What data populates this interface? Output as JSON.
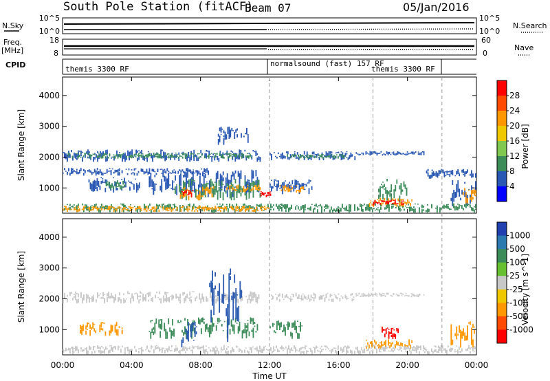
{
  "header": {
    "station": "South Pole Station (fitACF)",
    "beam": "Beam 07",
    "date": "05/Jan/2016"
  },
  "top_panels": {
    "nsky_label": "N.Sky",
    "nsky_ticks": [
      "10^5",
      "10^0"
    ],
    "nsearch_label": "N.Search",
    "nsearch_ticks": [
      "10^5",
      "10^0"
    ],
    "freq_label": "Freq.",
    "freq_unit": "[MHz]",
    "freq_ticks": [
      "18",
      "8"
    ],
    "nave_label": "Nave",
    "nave_ticks": [
      "60",
      "0"
    ],
    "cpid_label": "CPID",
    "cpid_segments": [
      {
        "label": "themis 3300 RF",
        "start_hour": 0,
        "end_hour": 12
      },
      {
        "label": "normalsound (fast) 157 RF",
        "start_hour": 12,
        "end_hour": 18
      },
      {
        "label": "themis 3300 RF",
        "start_hour": 18,
        "end_hour": 22
      }
    ]
  },
  "chart_data": [
    {
      "type": "heatmap",
      "name": "power",
      "ylabel": "Slant Range [km]",
      "yticks": [
        1000,
        2000,
        3000,
        4000
      ],
      "ylim": [
        180,
        4600
      ],
      "xlim_hours": [
        0,
        24
      ],
      "colorbar_label": "Power [dB]",
      "colorbar_ticks": [
        "28",
        "24",
        "20",
        "16",
        "12",
        "8",
        "4"
      ],
      "colorbar_colors": [
        "#ff0000",
        "#ff4a00",
        "#ff9800",
        "#f0c800",
        "#80c850",
        "#3c8c5a",
        "#2858b4",
        "#0000ff"
      ],
      "colors": {
        "far": "#2858b4",
        "mid": "#3c8c5a",
        "strong": "#ff9800",
        "peak": "#ff0000"
      },
      "regions": [
        {
          "t0": 0.0,
          "t1": 11.5,
          "r0": 1850,
          "r1": 2250,
          "level": "far"
        },
        {
          "t0": 0.3,
          "t1": 11.0,
          "r0": 1950,
          "r1": 2150,
          "level": "mid"
        },
        {
          "t0": 0.0,
          "t1": 8.5,
          "r0": 1400,
          "r1": 1650,
          "level": "far"
        },
        {
          "t0": 1.5,
          "t1": 4.5,
          "r0": 850,
          "r1": 1350,
          "level": "far"
        },
        {
          "t0": 2.5,
          "t1": 3.8,
          "r0": 950,
          "r1": 1250,
          "level": "mid"
        },
        {
          "t0": 5.0,
          "t1": 11.5,
          "r0": 700,
          "r1": 1600,
          "level": "far"
        },
        {
          "t0": 6.5,
          "t1": 11.5,
          "r0": 600,
          "r1": 1300,
          "level": "mid"
        },
        {
          "t0": 6.8,
          "t1": 8.8,
          "r0": 600,
          "r1": 1050,
          "level": "strong"
        },
        {
          "t0": 6.9,
          "t1": 7.6,
          "r0": 700,
          "r1": 950,
          "level": "peak"
        },
        {
          "t0": 9.5,
          "t1": 11.5,
          "r0": 850,
          "r1": 1100,
          "level": "strong"
        },
        {
          "t0": 11.4,
          "t1": 12.1,
          "r0": 700,
          "r1": 900,
          "level": "peak"
        },
        {
          "t0": 9.0,
          "t1": 10.8,
          "r0": 2400,
          "r1": 3000,
          "level": "far"
        },
        {
          "t0": 12.0,
          "t1": 17.0,
          "r0": 1900,
          "r1": 2200,
          "level": "far"
        },
        {
          "t0": 13.0,
          "t1": 16.5,
          "r0": 1950,
          "r1": 2100,
          "level": "mid"
        },
        {
          "t0": 12.0,
          "t1": 14.5,
          "r0": 800,
          "r1": 1300,
          "level": "far"
        },
        {
          "t0": 12.5,
          "t1": 14.0,
          "r0": 850,
          "r1": 1100,
          "level": "strong"
        },
        {
          "t0": 17.0,
          "t1": 21.0,
          "r0": 2050,
          "r1": 2200,
          "level": "far"
        },
        {
          "t0": 18.3,
          "t1": 20.0,
          "r0": 500,
          "r1": 1300,
          "level": "mid"
        },
        {
          "t0": 17.6,
          "t1": 20.3,
          "r0": 380,
          "r1": 680,
          "level": "strong"
        },
        {
          "t0": 18.0,
          "t1": 19.8,
          "r0": 430,
          "r1": 620,
          "level": "peak"
        },
        {
          "t0": 21.0,
          "t1": 24.0,
          "r0": 1300,
          "r1": 1650,
          "level": "far"
        },
        {
          "t0": 22.5,
          "t1": 24.0,
          "r0": 400,
          "r1": 1300,
          "level": "far"
        },
        {
          "t0": 23.2,
          "t1": 24.0,
          "r0": 500,
          "r1": 1000,
          "level": "strong"
        },
        {
          "t0": 0.0,
          "t1": 24.0,
          "r0": 200,
          "r1": 500,
          "level": "mid"
        },
        {
          "t0": 0.0,
          "t1": 12.0,
          "r0": 220,
          "r1": 420,
          "level": "strong"
        }
      ]
    },
    {
      "type": "heatmap",
      "name": "velocity",
      "ylabel": "Slant Range [km]",
      "yticks": [
        1000,
        2000,
        3000,
        4000
      ],
      "ylim": [
        180,
        4600
      ],
      "xlim_hours": [
        0,
        24
      ],
      "xlabel": "Time UT",
      "xticks": [
        "00:00",
        "04:00",
        "08:00",
        "12:00",
        "16:00",
        "20:00",
        "00:00"
      ],
      "colorbar_label": "Velocity [m s^-1]",
      "colorbar_ticks": [
        "1000",
        "500",
        "100",
        "25",
        "-25",
        "-100",
        "-500",
        "-1000"
      ],
      "colorbar_colors": [
        "#2040b0",
        "#2a7ab0",
        "#3c8c5a",
        "#66c030",
        "#c8c8c8",
        "#f0c800",
        "#ff9800",
        "#ff4a00",
        "#ff0000"
      ],
      "colors": {
        "gray": "#c8c8c8",
        "green": "#3c8c5a",
        "blue": "#2a5ab0",
        "orange": "#ff9800",
        "red": "#ff0000"
      },
      "regions": [
        {
          "t0": 0.0,
          "t1": 11.5,
          "r0": 1850,
          "r1": 2250,
          "level": "gray"
        },
        {
          "t0": 12.0,
          "t1": 17.0,
          "r0": 1900,
          "r1": 2200,
          "level": "gray"
        },
        {
          "t0": 17.0,
          "t1": 21.0,
          "r0": 2050,
          "r1": 2200,
          "level": "gray"
        },
        {
          "t0": 1.0,
          "t1": 3.5,
          "r0": 800,
          "r1": 1250,
          "level": "orange"
        },
        {
          "t0": 5.0,
          "t1": 11.5,
          "r0": 700,
          "r1": 1400,
          "level": "green"
        },
        {
          "t0": 6.8,
          "t1": 7.8,
          "r0": 400,
          "r1": 1300,
          "level": "blue"
        },
        {
          "t0": 8.5,
          "t1": 10.5,
          "r0": 600,
          "r1": 3000,
          "level": "blue"
        },
        {
          "t0": 12.0,
          "t1": 14.0,
          "r0": 700,
          "r1": 1300,
          "level": "green"
        },
        {
          "t0": 17.5,
          "t1": 20.3,
          "r0": 380,
          "r1": 700,
          "level": "orange"
        },
        {
          "t0": 18.5,
          "t1": 19.5,
          "r0": 700,
          "r1": 1100,
          "level": "red"
        },
        {
          "t0": 22.5,
          "t1": 24.0,
          "r0": 400,
          "r1": 1300,
          "level": "orange"
        },
        {
          "t0": 0.0,
          "t1": 24.0,
          "r0": 200,
          "r1": 500,
          "level": "gray"
        }
      ]
    }
  ]
}
